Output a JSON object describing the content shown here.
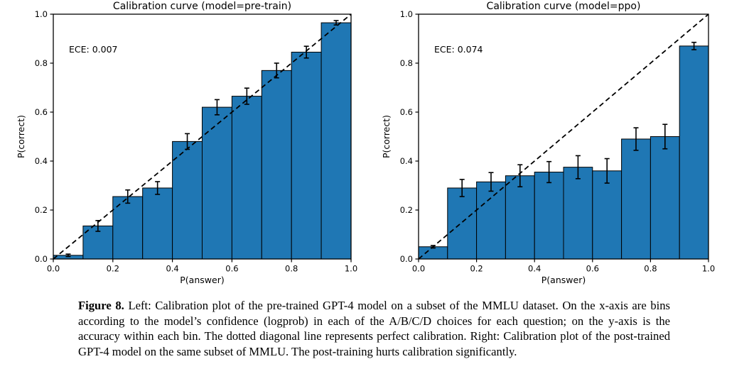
{
  "figure": {
    "caption_label": "Figure 8.",
    "caption_text": " Left: Calibration plot of the pre-trained GPT-4 model on a subset of the MMLU dataset. On the x-axis are bins according to the model’s confidence (logprob) in each of the A/B/C/D choices for each question; on the y-axis is the accuracy within each bin. The dotted diagonal line represents perfect calibration. Right: Calibration plot of the post-trained GPT-4 model on the same subset of MMLU. The post-training hurts calibration significantly."
  },
  "chart_data": [
    {
      "type": "bar",
      "title": "Calibration curve (model=pre-train)",
      "annotation": "ECE: 0.007",
      "xlabel": "P(answer)",
      "ylabel": "P(correct)",
      "xlim": [
        0.0,
        1.0
      ],
      "ylim": [
        0.0,
        1.0
      ],
      "xticks": [
        "0.0",
        "0.2",
        "0.4",
        "0.6",
        "0.8",
        "1.0"
      ],
      "yticks": [
        "0.0",
        "0.2",
        "0.4",
        "0.6",
        "0.8",
        "1.0"
      ],
      "grid": false,
      "legend": null,
      "bin_edges": [
        0.0,
        0.1,
        0.2,
        0.3,
        0.4,
        0.5,
        0.6,
        0.7,
        0.8,
        0.9,
        1.0
      ],
      "values": [
        0.015,
        0.135,
        0.255,
        0.29,
        0.48,
        0.62,
        0.665,
        0.77,
        0.845,
        0.965
      ],
      "errors": [
        0.005,
        0.022,
        0.027,
        0.026,
        0.032,
        0.031,
        0.033,
        0.03,
        0.024,
        0.009
      ],
      "bar_color": "#1f77b4",
      "bar_edge_color": "#000000",
      "diagonal": {
        "style": "dashed",
        "from": [
          0,
          0
        ],
        "to": [
          1,
          1
        ],
        "color": "#000000",
        "meaning": "perfect calibration"
      }
    },
    {
      "type": "bar",
      "title": "Calibration curve (model=ppo)",
      "annotation": "ECE: 0.074",
      "xlabel": "P(answer)",
      "ylabel": "P(correct)",
      "xlim": [
        0.0,
        1.0
      ],
      "ylim": [
        0.0,
        1.0
      ],
      "xticks": [
        "0.0",
        "0.2",
        "0.4",
        "0.6",
        "0.8",
        "1.0"
      ],
      "yticks": [
        "0.0",
        "0.2",
        "0.4",
        "0.6",
        "0.8",
        "1.0"
      ],
      "grid": false,
      "legend": null,
      "bin_edges": [
        0.0,
        0.1,
        0.2,
        0.3,
        0.4,
        0.5,
        0.6,
        0.7,
        0.8,
        0.9,
        1.0
      ],
      "values": [
        0.05,
        0.29,
        0.315,
        0.34,
        0.355,
        0.375,
        0.36,
        0.49,
        0.5,
        0.87
      ],
      "errors": [
        0.005,
        0.035,
        0.038,
        0.045,
        0.043,
        0.047,
        0.05,
        0.046,
        0.05,
        0.015
      ],
      "bar_color": "#1f77b4",
      "bar_edge_color": "#000000",
      "diagonal": {
        "style": "dashed",
        "from": [
          0,
          0
        ],
        "to": [
          1,
          1
        ],
        "color": "#000000",
        "meaning": "perfect calibration"
      }
    }
  ]
}
